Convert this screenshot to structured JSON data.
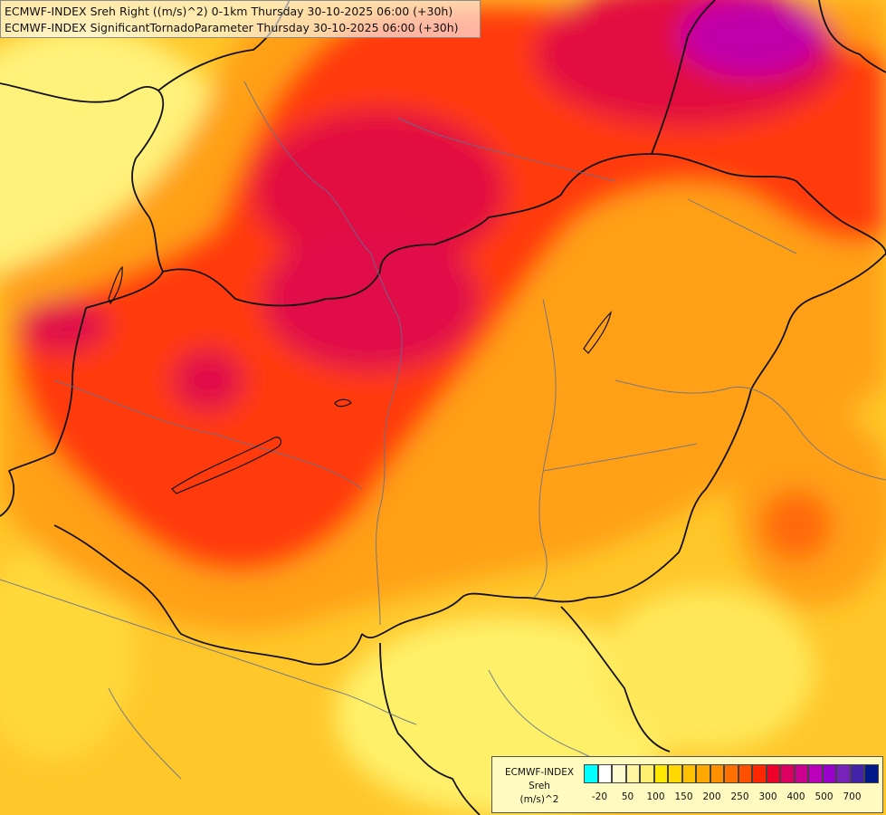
{
  "title": {
    "line1": "ECMWF-INDEX Sreh Right ((m/s)^2) 0-1km Thursday 30-10-2025 06:00 (+30h)",
    "line2": "ECMWF-INDEX SignificantTornadoParameter Thursday 30-10-2025 06:00 (+30h)"
  },
  "legend": {
    "line1": "ECMWF-INDEX",
    "line2": "Sreh",
    "line3": "(m/s)^2",
    "colors": [
      "#00ffff",
      "#ffffff",
      "#fffad0",
      "#fff5a0",
      "#fff070",
      "#ffe800",
      "#ffd800",
      "#ffc000",
      "#ffa800",
      "#ff9000",
      "#ff7000",
      "#ff5000",
      "#ff2800",
      "#ee0028",
      "#dd0060",
      "#cc0090",
      "#bb00bb",
      "#9900cc",
      "#7722bb",
      "#4422aa",
      "#001888"
    ],
    "ticks": [
      {
        "label": "-20",
        "index": 1
      },
      {
        "label": "50",
        "index": 3
      },
      {
        "label": "100",
        "index": 5
      },
      {
        "label": "150",
        "index": 7
      },
      {
        "label": "200",
        "index": 9
      },
      {
        "label": "250",
        "index": 11
      },
      {
        "label": "300",
        "index": 13
      },
      {
        "label": "400",
        "index": 15
      },
      {
        "label": "500",
        "index": 17
      },
      {
        "label": "700",
        "index": 19
      }
    ]
  },
  "colors": {
    "background": "#ffd83a",
    "yellow_light": "#fff27a",
    "orange": "#ffa61a",
    "orange_dark": "#ff7a10",
    "red": "#ff3a10",
    "crimson": "#e01040",
    "magenta": "#c000a0",
    "border": "#111111",
    "river": "#607090"
  }
}
